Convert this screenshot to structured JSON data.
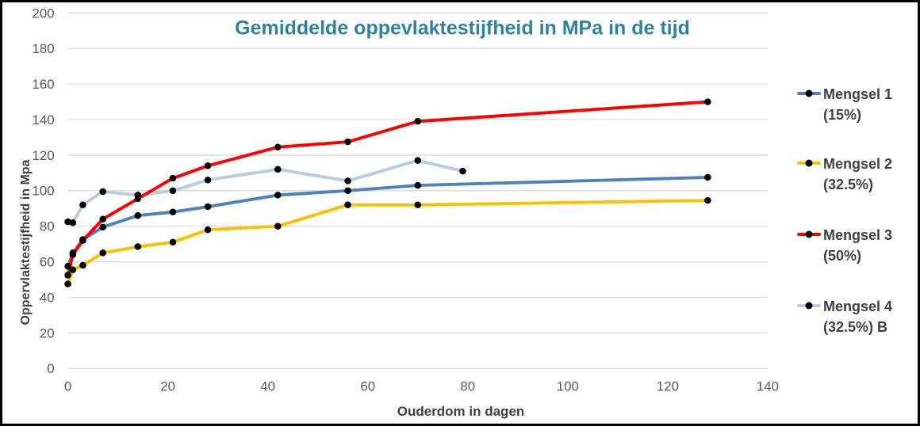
{
  "chart_data": {
    "type": "line",
    "title": "Gemiddelde oppevlaktestijfheid in MPa in de tijd",
    "xlabel": "Ouderdom in dagen",
    "ylabel": "Oppervlaktestijfheid in Mpa",
    "xlim": [
      0,
      140
    ],
    "ylim": [
      0,
      200
    ],
    "x_ticks": [
      0,
      20,
      40,
      60,
      80,
      100,
      120,
      140
    ],
    "y_ticks": [
      0,
      20,
      40,
      60,
      80,
      100,
      120,
      140,
      160,
      180,
      200
    ],
    "grid": true,
    "legend_position": "right",
    "marker_color": "#000000",
    "colors": {
      "title": "#2E82A0",
      "axis_text": "#404040",
      "tick_text": "#595959",
      "gridline": "#D9D9D9"
    },
    "series": [
      {
        "name": "Mengsel 1 (15%)",
        "legend_line1": "Mengsel 1",
        "legend_line2": "(15%)",
        "color": "#4F81BD",
        "x": [
          0,
          1,
          3,
          7,
          14,
          21,
          28,
          42,
          56,
          70,
          128
        ],
        "y": [
          57.5,
          65,
          72.5,
          79.5,
          86,
          88,
          91,
          97.5,
          100,
          103,
          107.5
        ]
      },
      {
        "name": "Mengsel 2 (32.5%)",
        "legend_line1": "Mengsel 2",
        "legend_line2": "(32.5%)",
        "color": "#FFC000",
        "x": [
          0,
          1,
          3,
          7,
          14,
          21,
          28,
          42,
          56,
          70,
          128
        ],
        "y": [
          47.5,
          55.5,
          58,
          65,
          68.5,
          71,
          78,
          80,
          92,
          92,
          94.5
        ]
      },
      {
        "name": "Mengsel 3 (50%)",
        "legend_line1": "Mengsel 3",
        "legend_line2": "(50%)",
        "color": "#FF0000",
        "x": [
          0,
          1,
          3,
          7,
          14,
          21,
          28,
          42,
          56,
          70,
          128
        ],
        "y": [
          52.5,
          64,
          72,
          84,
          95.5,
          107,
          114,
          124.5,
          127.5,
          139,
          150
        ]
      },
      {
        "name": "Mengsel 4 (32.5%) B",
        "legend_line1": "Mengsel 4",
        "legend_line2": "(32.5%) B",
        "color": "#B8CCE4",
        "x": [
          0,
          1,
          3,
          7,
          14,
          21,
          28,
          42,
          56,
          70,
          79
        ],
        "y": [
          82.5,
          82,
          92,
          99.5,
          97.5,
          100,
          106,
          112,
          105.5,
          117,
          111
        ]
      }
    ]
  }
}
